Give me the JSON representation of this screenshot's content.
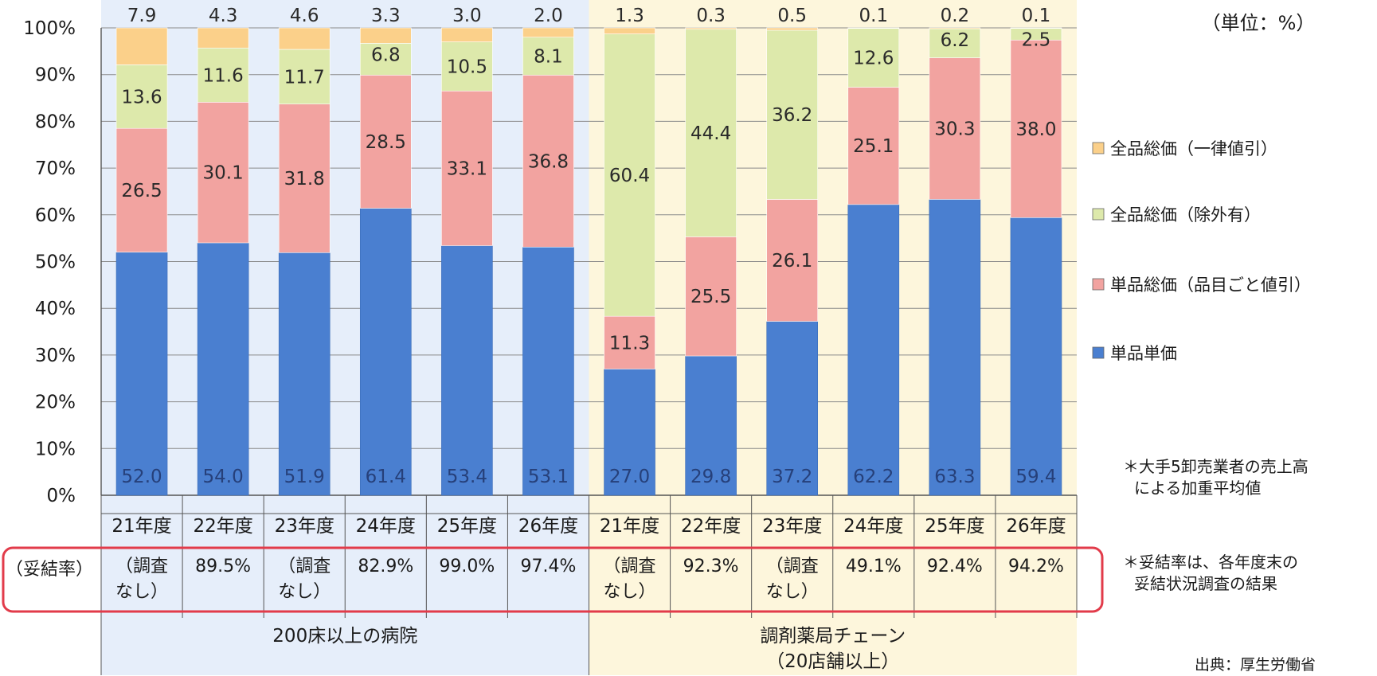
{
  "chart_data": {
    "type": "bar",
    "stacked": true,
    "normalized": true,
    "unit_note": "（単位：%）",
    "yticks": [
      "0%",
      "10%",
      "20%",
      "30%",
      "40%",
      "50%",
      "60%",
      "70%",
      "80%",
      "90%",
      "100%"
    ],
    "ylim": [
      0,
      100
    ],
    "grid": true,
    "legend_position": "right",
    "categories": [
      "21年度",
      "22年度",
      "23年度",
      "24年度",
      "25年度",
      "26年度",
      "21年度",
      "22年度",
      "23年度",
      "24年度",
      "25年度",
      "26年度"
    ],
    "groups": [
      {
        "label": "200床以上の病院",
        "first": 0,
        "count": 6
      },
      {
        "label": "調剤薬局チェーン",
        "sublabel": "（20店舗以上）",
        "first": 6,
        "count": 6
      }
    ],
    "series": [
      {
        "name": "単品単価",
        "color": "#4a7fd0",
        "values": [
          52.0,
          54.0,
          51.9,
          61.4,
          53.4,
          53.1,
          27.0,
          29.8,
          37.2,
          62.2,
          63.3,
          59.4
        ]
      },
      {
        "name": "単品総価（品目ごと値引）",
        "color": "#f2a3a0",
        "values": [
          26.5,
          30.1,
          31.8,
          28.5,
          33.1,
          36.8,
          11.3,
          25.5,
          26.1,
          25.1,
          30.3,
          38.0
        ]
      },
      {
        "name": "全品総価（除外有）",
        "color": "#dde9ab",
        "values": [
          13.6,
          11.6,
          11.7,
          6.8,
          10.5,
          8.1,
          60.4,
          44.4,
          36.2,
          12.6,
          6.2,
          2.5
        ]
      },
      {
        "name": "全品総価（一律値引）",
        "color": "#fbd08a",
        "values": [
          7.9,
          4.3,
          4.6,
          3.3,
          3.0,
          2.0,
          1.3,
          0.3,
          0.5,
          0.1,
          0.2,
          0.1
        ]
      }
    ],
    "datalabels": [
      [
        "52.0",
        "54.0",
        "51.9",
        "61.4",
        "53.4",
        "53.1",
        "27.0",
        "29.8",
        "37.2",
        "62.2",
        "63.3",
        "59.4"
      ],
      [
        "26.5",
        "30.1",
        "31.8",
        "28.5",
        "33.1",
        "36.8",
        "11.3",
        "25.5",
        "26.1",
        "25.1",
        "30.3",
        "38.0"
      ],
      [
        "13.6",
        "11.6",
        "11.7",
        "6.8",
        "10.5",
        "8.1",
        "60.4",
        "44.4",
        "36.2",
        "12.6",
        "6.2",
        "2.5"
      ],
      [
        "7.9",
        "4.3",
        "4.6",
        "3.3",
        "3.0",
        "2.0",
        "1.3",
        "0.3",
        "0.5",
        "0.1",
        "0.2",
        "0.1"
      ]
    ],
    "rate_row_label": "（妥結率）",
    "rates": [
      [
        "（調査",
        "なし）"
      ],
      [
        "89.5%"
      ],
      [
        "（調査",
        "なし）"
      ],
      [
        "82.9%"
      ],
      [
        "99.0%"
      ],
      [
        "97.4%"
      ],
      [
        "（調査",
        "なし）"
      ],
      [
        "92.3%"
      ],
      [
        "（調査",
        "なし）"
      ],
      [
        "49.1%"
      ],
      [
        "92.4%"
      ],
      [
        "94.2%"
      ]
    ],
    "colors": {
      "hospital_bg": "#e6eefa",
      "pharmacy_bg": "#fdf6dc",
      "highlight_box": "#e23b4a"
    }
  },
  "notes": {
    "weighted_avg_1": "＊大手5卸売業者の売上高",
    "weighted_avg_2": "による加重平均値",
    "rate_note_1": "＊妥結率は、各年度末の",
    "rate_note_2": "妥結状況調査の結果",
    "source": "出典：厚生労働省"
  }
}
